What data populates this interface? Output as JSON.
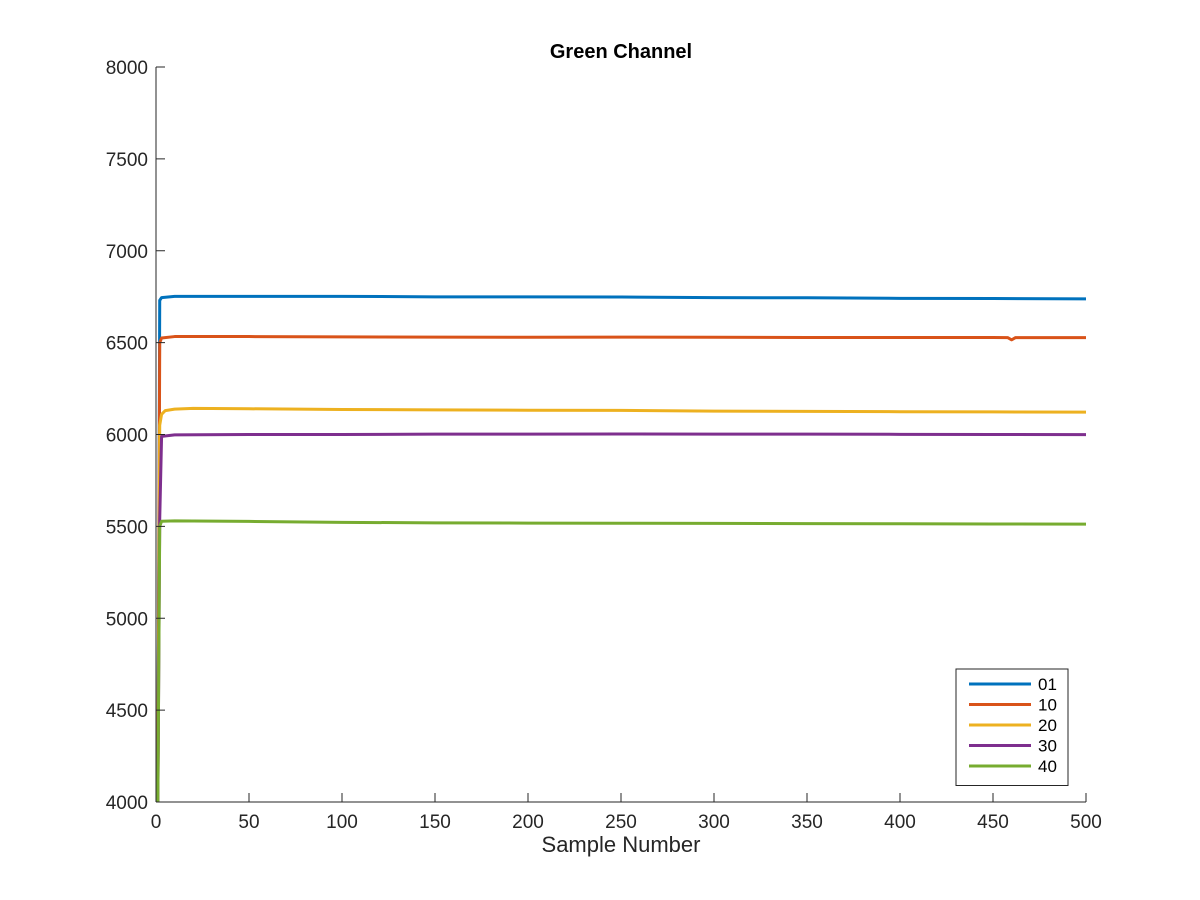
{
  "chart_data": {
    "type": "line",
    "title": "Green Channel",
    "xlabel": "Sample Number",
    "ylabel": "",
    "xlim": [
      0,
      500
    ],
    "ylim": [
      4000,
      8000
    ],
    "xticks": [
      0,
      50,
      100,
      150,
      200,
      250,
      300,
      350,
      400,
      450,
      500
    ],
    "yticks": [
      4000,
      4500,
      5000,
      5500,
      6000,
      6500,
      7000,
      7500,
      8000
    ],
    "grid": false,
    "legend_position": "bottom-right",
    "series": [
      {
        "name": "01",
        "color": "#0072BD",
        "x": [
          1,
          2,
          3,
          10,
          50,
          100,
          150,
          200,
          250,
          300,
          350,
          400,
          450,
          500
        ],
        "y": [
          4000,
          6730,
          6745,
          6752,
          6752,
          6752,
          6749,
          6749,
          6748,
          6745,
          6744,
          6741,
          6740,
          6738
        ]
      },
      {
        "name": "10",
        "color": "#D95319",
        "x": [
          1,
          2,
          3,
          10,
          50,
          100,
          150,
          200,
          250,
          300,
          350,
          400,
          450,
          458,
          460,
          462,
          500
        ],
        "y": [
          4000,
          6500,
          6525,
          6533,
          6533,
          6531,
          6530,
          6529,
          6530,
          6529,
          6528,
          6528,
          6528,
          6527,
          6515,
          6527,
          6527
        ]
      },
      {
        "name": "20",
        "color": "#EDB120",
        "x": [
          1,
          2,
          3,
          5,
          10,
          20,
          50,
          100,
          150,
          200,
          250,
          300,
          350,
          400,
          450,
          500
        ],
        "y": [
          4000,
          6050,
          6110,
          6130,
          6138,
          6142,
          6140,
          6136,
          6134,
          6132,
          6131,
          6127,
          6126,
          6124,
          6123,
          6122
        ]
      },
      {
        "name": "30",
        "color": "#7E2F8E",
        "x": [
          1,
          2,
          3,
          10,
          50,
          100,
          150,
          200,
          250,
          300,
          350,
          400,
          450,
          500
        ],
        "y": [
          4000,
          5540,
          5990,
          5998,
          6000,
          6000,
          6002,
          6002,
          6003,
          6002,
          6002,
          6001,
          6000,
          5999
        ]
      },
      {
        "name": "40",
        "color": "#77AC30",
        "x": [
          1,
          2,
          3,
          10,
          50,
          100,
          150,
          200,
          250,
          300,
          350,
          400,
          450,
          500
        ],
        "y": [
          4000,
          5500,
          5528,
          5530,
          5527,
          5522,
          5519,
          5518,
          5517,
          5516,
          5515,
          5514,
          5513,
          5512
        ]
      }
    ]
  }
}
